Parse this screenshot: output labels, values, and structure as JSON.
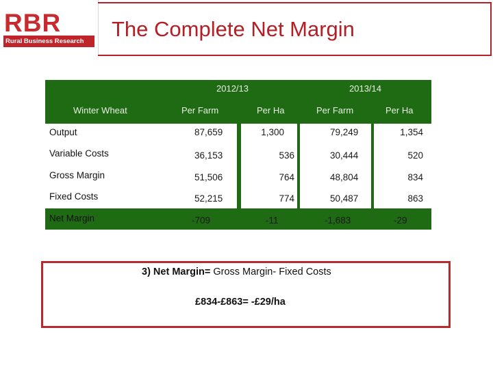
{
  "logo": {
    "letters": "RBR",
    "subtitle": "Rural Business Research"
  },
  "title": "The Complete Net Margin",
  "table": {
    "year1": "2012/13",
    "year2": "2013/14",
    "crop": "Winter Wheat",
    "col_per_farm": "Per Farm",
    "col_per_ha": "Per Ha",
    "rows": [
      {
        "label": "Output",
        "y1_farm": "87,659",
        "y1_ha": "1,300",
        "y2_farm": "79,249",
        "y2_ha": "1,354"
      },
      {
        "label": "Variable Costs",
        "y1_farm": "36,153",
        "y1_ha": "536",
        "y2_farm": "30,444",
        "y2_ha": "520"
      },
      {
        "label": "Gross Margin",
        "y1_farm": "51,506",
        "y1_ha": "764",
        "y2_farm": "48,804",
        "y2_ha": "834"
      },
      {
        "label": "Fixed Costs",
        "y1_farm": "52,215",
        "y1_ha": "774",
        "y2_farm": "50,487",
        "y2_ha": "863"
      },
      {
        "label": "Net Margin",
        "y1_farm": "-709",
        "y1_ha": "-11",
        "y2_farm": "-1,683",
        "y2_ha": "-29"
      }
    ]
  },
  "formula": {
    "prefix": "3) Net Margin= ",
    "expression": "Gross Margin- Fixed Costs",
    "calculation": "£834-£863= -£29/ha"
  },
  "colors": {
    "accent": "#b41e25",
    "table_green": "#1f6b13"
  }
}
